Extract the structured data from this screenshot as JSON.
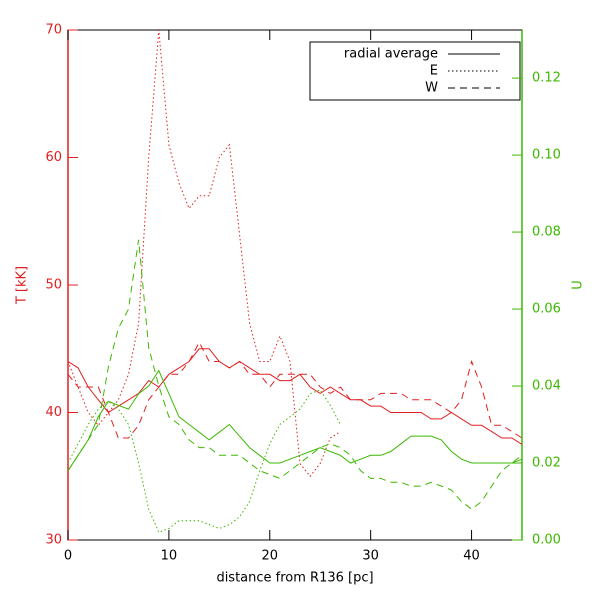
{
  "chart_data": {
    "type": "line",
    "xlabel": "distance from R136 [pc]",
    "ylabel": "T [kK]",
    "y2label": "U",
    "axis_color": "#e02020",
    "axis2_color": "#3cb800",
    "x": [
      0,
      1,
      2,
      3,
      4,
      5,
      6,
      7,
      8,
      9,
      10,
      11,
      12,
      13,
      14,
      15,
      16,
      17,
      18,
      19,
      20,
      21,
      22,
      23,
      24,
      25,
      26,
      27,
      28,
      29,
      30,
      31,
      32,
      33,
      34,
      35,
      36,
      37,
      38,
      39,
      40,
      41,
      42,
      43,
      44,
      45
    ],
    "xlim": [
      0,
      45
    ],
    "xticks": [
      0,
      10,
      20,
      30,
      40
    ],
    "ylim": [
      30,
      70
    ],
    "yticks": [
      30,
      40,
      50,
      60,
      70
    ],
    "y2lim": [
      0,
      0.1325
    ],
    "y2ticks": [
      {
        "value": 0,
        "label": "0.00"
      },
      {
        "value": 0.02,
        "label": "0.02"
      },
      {
        "value": 0.04,
        "label": "0.04"
      },
      {
        "value": 0.06,
        "label": "0.06"
      },
      {
        "value": 0.08,
        "label": "0.08"
      },
      {
        "value": 0.1,
        "label": "0.10"
      },
      {
        "value": 0.12,
        "label": "0.12"
      }
    ],
    "legend": [
      {
        "label": "radial average",
        "dash": "solid"
      },
      {
        "label": "E",
        "dash": "dotted"
      },
      {
        "label": "W",
        "dash": "dashed"
      }
    ],
    "series": [
      {
        "color": "#e02020",
        "dash": "solid",
        "axis": "y",
        "values": [
          44,
          43.5,
          42,
          41,
          40,
          40.5,
          41,
          41.5,
          42.5,
          42,
          43,
          43.5,
          44,
          45,
          45,
          44,
          43.5,
          44,
          43.5,
          43,
          43,
          42.5,
          42.5,
          43,
          42,
          41.5,
          42,
          41.5,
          41,
          41,
          40.5,
          40.5,
          40,
          40,
          40,
          40,
          39.5,
          39.5,
          40,
          39.5,
          39,
          39,
          38.5,
          38,
          38,
          37.5
        ]
      },
      {
        "color": "#e02020",
        "dash": "dotted",
        "axis": "y",
        "values": [
          44,
          42,
          40,
          39,
          40,
          41,
          43,
          47,
          60,
          70,
          61,
          58,
          56,
          57,
          57,
          60,
          61,
          54,
          47,
          44,
          44,
          46,
          44,
          36,
          35,
          36,
          38,
          38.5,
          null,
          null,
          null,
          null,
          null,
          null,
          null,
          null,
          null,
          null,
          null,
          null,
          null,
          null,
          null,
          null,
          null,
          null
        ]
      },
      {
        "color": "#e02020",
        "dash": "dashed",
        "axis": "y",
        "values": [
          43,
          42,
          42,
          42,
          40,
          38,
          38,
          39,
          41,
          42,
          43,
          43,
          44,
          45.5,
          44,
          44,
          43.5,
          44,
          43,
          43,
          42,
          43,
          43,
          43,
          43,
          42,
          41.5,
          42,
          41,
          41,
          41,
          41.5,
          41.5,
          41.5,
          41,
          41,
          41,
          40.5,
          40,
          41,
          44,
          42,
          39,
          39,
          38.5,
          38
        ]
      },
      {
        "color": "#3cb800",
        "dash": "solid",
        "axis": "y2",
        "values": [
          0.018,
          0.022,
          0.026,
          0.032,
          0.036,
          0.035,
          0.034,
          0.038,
          0.04,
          0.044,
          0.038,
          0.032,
          0.03,
          0.028,
          0.026,
          0.028,
          0.03,
          0.027,
          0.024,
          0.022,
          0.02,
          0.02,
          0.021,
          0.022,
          0.023,
          0.024,
          0.023,
          0.022,
          0.02,
          0.021,
          0.022,
          0.022,
          0.023,
          0.025,
          0.027,
          0.027,
          0.027,
          0.026,
          0.023,
          0.021,
          0.02,
          0.02,
          0.02,
          0.02,
          0.02,
          0.021
        ]
      },
      {
        "color": "#3cb800",
        "dash": "dotted",
        "axis": "y2",
        "values": [
          0.02,
          0.025,
          0.03,
          0.034,
          0.036,
          0.034,
          0.03,
          0.02,
          0.008,
          0.002,
          0.003,
          0.005,
          0.005,
          0.005,
          0.004,
          0.003,
          0.004,
          0.006,
          0.01,
          0.018,
          0.025,
          0.03,
          0.032,
          0.034,
          0.038,
          0.039,
          0.035,
          0.03,
          null,
          null,
          null,
          null,
          null,
          null,
          null,
          null,
          null,
          null,
          null,
          null,
          null,
          null,
          null,
          null,
          null,
          null
        ]
      },
      {
        "color": "#3cb800",
        "dash": "dashed",
        "axis": "y2",
        "values": [
          0.018,
          0.022,
          0.026,
          0.03,
          0.045,
          0.055,
          0.06,
          0.078,
          0.05,
          0.04,
          0.032,
          0.03,
          0.026,
          0.024,
          0.024,
          0.022,
          0.022,
          0.022,
          0.02,
          0.018,
          0.017,
          0.016,
          0.018,
          0.02,
          0.022,
          0.024,
          0.025,
          0.024,
          0.022,
          0.018,
          0.016,
          0.016,
          0.015,
          0.015,
          0.014,
          0.014,
          0.015,
          0.014,
          0.013,
          0.01,
          0.008,
          0.01,
          0.014,
          0.018,
          0.02,
          0.022
        ]
      }
    ]
  }
}
